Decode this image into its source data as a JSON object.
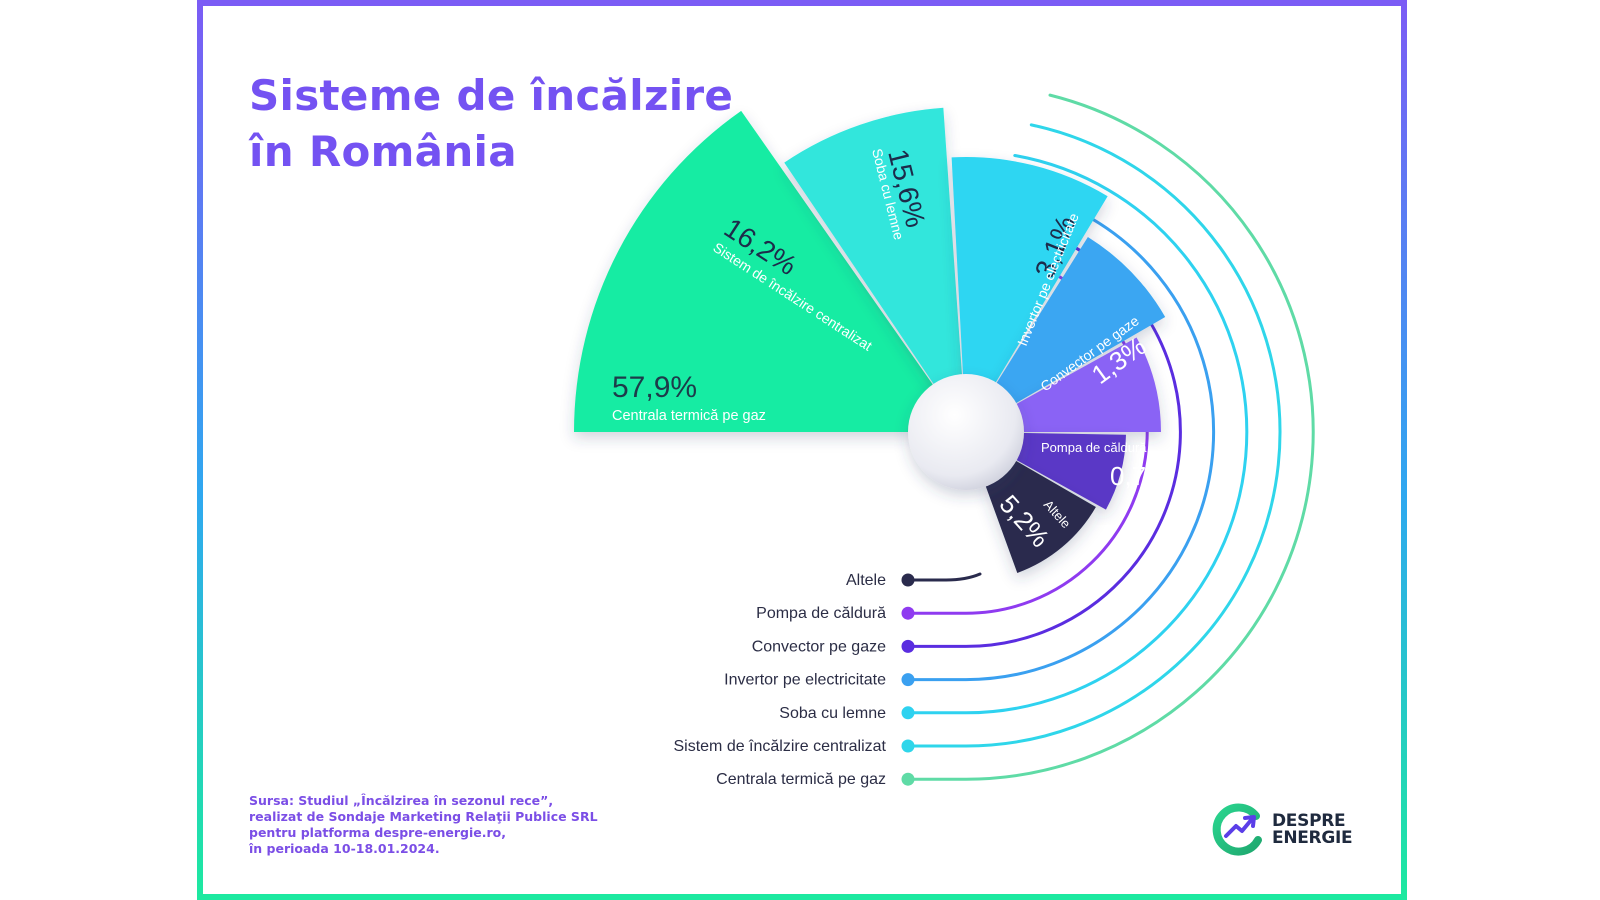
{
  "title": {
    "line1": "Sisteme de încălzire",
    "line2": "în România"
  },
  "source": {
    "line1": "Sursa: Studiul „Încălzirea în sezonul rece”,",
    "line2": "realizat de Sondaje Marketing Relaţii Publice SRL",
    "line3": "pentru platforma despre-energie.ro,",
    "line4": "în perioada 10-18.01.2024."
  },
  "logo": {
    "line1": "DESPRE",
    "line2": "ENERGIE",
    "icon": "despre-energie-logo-icon"
  },
  "colors": {
    "title": "#7452f2",
    "frame_top": "#7b5cf5",
    "frame_bottom": "#1de9a0"
  },
  "chart_data": {
    "type": "pie",
    "layout": "radial-segments",
    "series": [
      {
        "label": "Centrala termică pe gaz",
        "value": 57.9,
        "value_label": "57,9%",
        "color": "#15eca3"
      },
      {
        "label": "Sistem de încălzire centralizat",
        "value": 16.2,
        "value_label": "16,2%",
        "color": "#33e6dc"
      },
      {
        "label": "Soba cu lemne",
        "value": 15.6,
        "value_label": "15,6%",
        "color": "#2ed6f2"
      },
      {
        "label": "Invertor pe electricitate",
        "value": 3.1,
        "value_label": "3,1%",
        "color": "#3aa6f2"
      },
      {
        "label": "Convector pe gaze",
        "value": 1.3,
        "value_label": "1,3%",
        "color": "#8a63f5"
      },
      {
        "label": "Pompa de căldură",
        "value": 0.7,
        "value_label": "0,7%",
        "color": "#5a39c6"
      },
      {
        "label": "Altele",
        "value": 5.2,
        "value_label": "5,2%",
        "color": "#2a2b4d"
      }
    ],
    "legend": [
      {
        "label": "Altele",
        "color": "#2a2b4d"
      },
      {
        "label": "Pompa de căldură",
        "color": "#8f3bf0"
      },
      {
        "label": "Convector pe gaze",
        "color": "#5a2de0"
      },
      {
        "label": "Invertor pe electricitate",
        "color": "#3aa0f0"
      },
      {
        "label": "Soba cu lemne",
        "color": "#2ed2f0"
      },
      {
        "label": "Sistem de încălzire centralizat",
        "color": "#2fd6ea"
      },
      {
        "label": "Centrala termică pe gaz",
        "color": "#5fdba6"
      }
    ]
  }
}
